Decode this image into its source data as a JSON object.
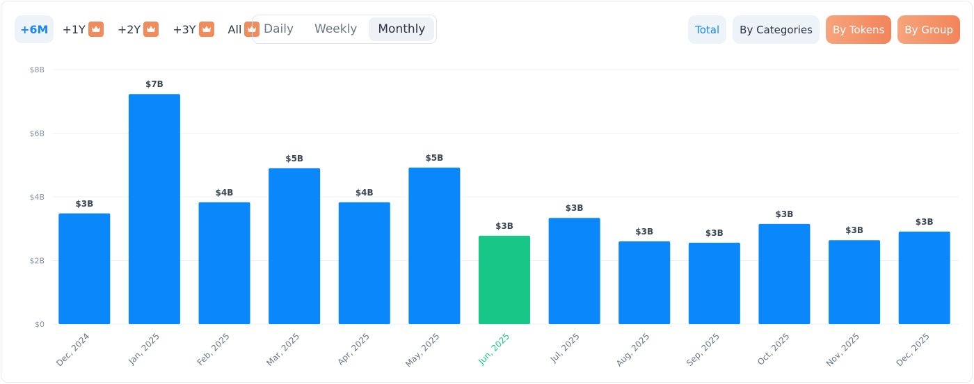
{
  "ranges": [
    {
      "label": "+6M",
      "active": true,
      "premium": false
    },
    {
      "label": "+1Y",
      "premium": true
    },
    {
      "label": "+2Y",
      "premium": true
    },
    {
      "label": "+3Y",
      "premium": true
    },
    {
      "label": "All",
      "premium": true
    }
  ],
  "granularity": {
    "options": [
      "Daily",
      "Weekly",
      "Monthly"
    ],
    "selected": "Monthly"
  },
  "views": {
    "total": "Total",
    "by_categories": "By Categories",
    "by_tokens": "By Tokens",
    "by_group": "By Group"
  },
  "colors": {
    "bar": "#0a87fb",
    "highlight": "#18c787",
    "premium": "#f2845a"
  },
  "chart_data": {
    "type": "bar",
    "title": "",
    "xlabel": "",
    "ylabel": "",
    "ylim": [
      0,
      8
    ],
    "yticks": [
      {
        "v": 0,
        "label": "$0"
      },
      {
        "v": 2,
        "label": "$2B"
      },
      {
        "v": 4,
        "label": "$4B"
      },
      {
        "v": 6,
        "label": "$6B"
      },
      {
        "v": 8,
        "label": "$8B"
      }
    ],
    "categories": [
      "Dec, 2024",
      "Jan, 2025",
      "Feb, 2025",
      "Mar, 2025",
      "Apr, 2025",
      "May, 2025",
      "Jun, 2025",
      "Jul, 2025",
      "Aug, 2025",
      "Sep, 2025",
      "Oct, 2025",
      "Nov, 2025",
      "Dec, 2025"
    ],
    "values": [
      3.48,
      7.23,
      3.83,
      4.9,
      3.83,
      4.92,
      2.78,
      3.34,
      2.6,
      2.56,
      3.15,
      2.64,
      2.91
    ],
    "value_labels": [
      "$3B",
      "$7B",
      "$4B",
      "$5B",
      "$4B",
      "$5B",
      "$3B",
      "$3B",
      "$3B",
      "$3B",
      "$3B",
      "$3B",
      "$3B"
    ],
    "highlight_index": 6,
    "grid": true
  }
}
